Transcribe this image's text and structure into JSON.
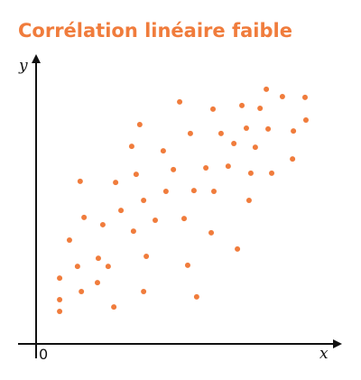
{
  "chart_data": {
    "type": "scatter",
    "title": "Corrélation linéaire faible",
    "xlabel": "x",
    "ylabel": "y",
    "color": "#f07c3c",
    "xlim": [
      0,
      100
    ],
    "ylim": [
      0,
      100
    ],
    "xticks": [
      0
    ],
    "x": [
      7.9,
      7.9,
      7.9,
      11.2,
      13.9,
      14.8,
      15.2,
      16.1,
      20.6,
      20.9,
      22.4,
      24.2,
      26.1,
      26.7,
      28.5,
      32.1,
      32.7,
      33.6,
      34.8,
      36.1,
      36.1,
      37.0,
      40.0,
      42.7,
      43.6,
      46.1,
      48.2,
      49.7,
      50.9,
      51.8,
      53.0,
      53.9,
      57.0,
      58.8,
      59.7,
      59.4,
      62.1,
      64.5,
      66.4,
      67.6,
      69.1,
      70.6,
      71.5,
      72.1,
      73.6,
      75.2,
      77.9,
      77.3,
      79.1,
      82.7,
      86.1,
      86.4,
      90.6,
      90.3
    ],
    "values": [
      23.5,
      15.8,
      11.6,
      37.1,
      27.7,
      58.1,
      18.7,
      45.2,
      21.9,
      30.6,
      42.6,
      27.7,
      13.2,
      57.7,
      47.7,
      70.6,
      40.3,
      60.6,
      78.4,
      18.7,
      51.3,
      31.3,
      44.2,
      69.0,
      54.5,
      62.3,
      86.5,
      44.8,
      28.1,
      75.2,
      54.8,
      16.8,
      62.9,
      39.7,
      54.5,
      83.9,
      75.2,
      63.5,
      71.6,
      33.9,
      85.2,
      77.1,
      51.3,
      61.0,
      70.3,
      84.2,
      76.8,
      91.0,
      61.0,
      88.4,
      66.1,
      76.1,
      80.0,
      88.1
    ]
  }
}
